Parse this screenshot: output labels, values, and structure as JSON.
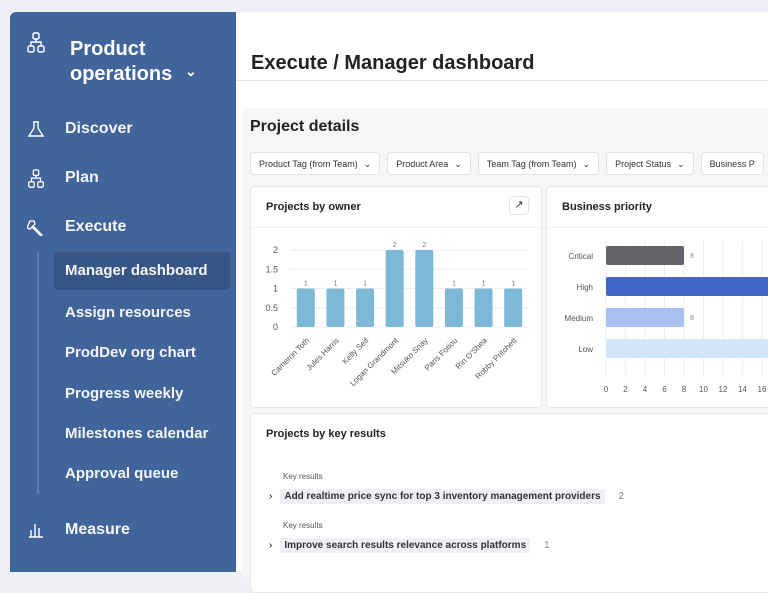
{
  "sidebar": {
    "brand": "Product operations",
    "brand_chevron": "⌄",
    "items": [
      {
        "label": "Discover",
        "icon": "flask-icon"
      },
      {
        "label": "Plan",
        "icon": "hierarchy-icon"
      },
      {
        "label": "Execute",
        "icon": "wrench-icon"
      },
      {
        "label": "Measure",
        "icon": "bar-chart-icon"
      }
    ],
    "sub_items": [
      "Manager dashboard",
      "Assign resources",
      "ProdDev org chart",
      "Progress weekly",
      "Milestones calendar",
      "Approval queue"
    ],
    "selected": "Manager dashboard",
    "color": "#41659a"
  },
  "header": {
    "title": "Execute / Manager dashboard"
  },
  "section": {
    "title": "Project details"
  },
  "filters": [
    "Product Tag (from Team)",
    "Product Area",
    "Team Tag (from Team)",
    "Project Status",
    "Business P"
  ],
  "chart_data": [
    {
      "type": "bar",
      "title": "Projects by owner",
      "categories": [
        "Cameron Toth",
        "Jules Harris",
        "Kelly Seif",
        "Logan Grandmont",
        "Mitsuko Snay",
        "Paris Fotiou",
        "Rin O'Shea",
        "Robby Pritchett"
      ],
      "values": [
        1,
        1,
        1,
        2,
        2,
        1,
        1,
        1
      ],
      "yticks": [
        "0",
        "0.5",
        "1",
        "1.5",
        "2"
      ],
      "ylim": [
        0,
        2
      ],
      "grid": true,
      "color": "#7db8d6"
    },
    {
      "type": "bar",
      "orientation": "horizontal",
      "title": "Business priority",
      "categories": [
        "Critical",
        "High",
        "Medium",
        "Low"
      ],
      "values": [
        8,
        null,
        8,
        null
      ],
      "data_labels": [
        "8",
        "",
        "8",
        ""
      ],
      "xticks": [
        "0",
        "2",
        "4",
        "6",
        "8",
        "10",
        "12",
        "14",
        "16"
      ],
      "grid": true,
      "colors": [
        "#616368",
        "#3f66c9",
        "#a9c0f0",
        "#d3e6f8"
      ]
    }
  ],
  "key_results": {
    "title": "Projects by key results",
    "groups": [
      {
        "label": "Key results",
        "name": "Add realtime price sync for top 3 inventory management providers",
        "count": "2"
      },
      {
        "label": "Key results",
        "name": "Improve search results relevance across platforms",
        "count": "1"
      }
    ]
  }
}
